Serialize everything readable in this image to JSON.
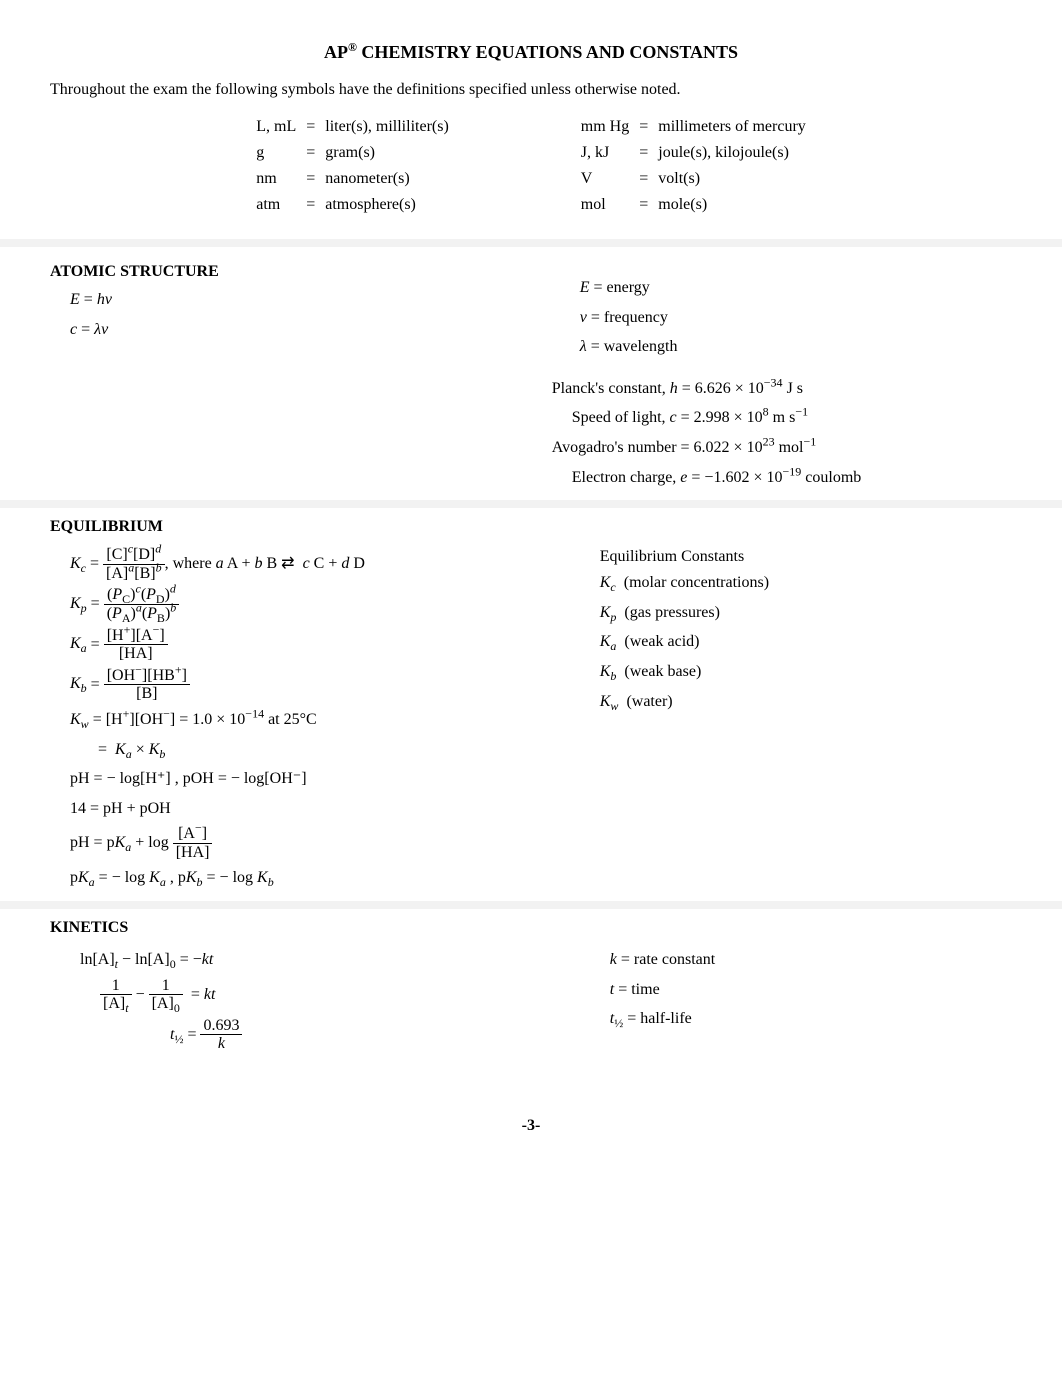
{
  "title_prefix": "AP",
  "title_reg": "®",
  "title_rest": " CHEMISTRY EQUATIONS AND CONSTANTS",
  "intro": "Throughout the exam the following symbols have the definitions specified unless otherwise noted.",
  "units_left": [
    {
      "sym": "L, mL",
      "eq": "=",
      "def": "liter(s), milliliter(s)"
    },
    {
      "sym": "g",
      "eq": "=",
      "def": "gram(s)"
    },
    {
      "sym": "nm",
      "eq": "=",
      "def": "nanometer(s)"
    },
    {
      "sym": "atm",
      "eq": "=",
      "def": "atmosphere(s)"
    }
  ],
  "units_right": [
    {
      "sym": "mm Hg",
      "eq": "=",
      "def": "millimeters of mercury"
    },
    {
      "sym": "J, kJ",
      "eq": "=",
      "def": "joule(s), kilojoule(s)"
    },
    {
      "sym": "V",
      "eq": "=",
      "def": "volt(s)"
    },
    {
      "sym": "mol",
      "eq": "=",
      "def": "mole(s)"
    }
  ],
  "atomic": {
    "head": "ATOMIC STRUCTURE",
    "eq1_lhs": "E",
    "eq1_rhs": "hν",
    "eq2_lhs": "c",
    "eq2_rhs": "λν",
    "defs": [
      {
        "sym": "E",
        "txt": " = energy"
      },
      {
        "sym": "ν",
        "txt": " = frequency"
      },
      {
        "sym": "λ",
        "txt": " = wavelength"
      }
    ],
    "consts": {
      "planck_label": "Planck's constant, ",
      "planck_sym": "h",
      "planck_val": " = 6.626 × 10",
      "planck_exp": "−34",
      "planck_unit": " J s",
      "light_label": "Speed of light, ",
      "light_sym": "c",
      "light_val": " = 2.998 × 10",
      "light_exp": "8",
      "light_unit": " m s",
      "light_unit_exp": "−1",
      "avo_label": "Avogadro's number = 6.022 × 10",
      "avo_exp": "23",
      "avo_unit": " mol",
      "avo_unit_exp": "−1",
      "elec_label": "Electron charge, ",
      "elec_sym": "e",
      "elec_val": " = −1.602 × 10",
      "elec_exp": "−19",
      "elec_unit": " coulomb"
    }
  },
  "equil": {
    "head": "EQUILIBRIUM",
    "where_txt": ", where ",
    "rxn_a": "a",
    "rxn_A": " A + ",
    "rxn_b": "b",
    "rxn_B": " B ",
    "rxn_arrow": "⇄",
    "rxn_c": " c",
    "rxn_C": " C + ",
    "rxn_d": "d",
    "rxn_D": " D",
    "kw_val": " = 1.0 × 10",
    "kw_exp": "−14",
    "kw_temp": " at 25°C",
    "ph_def": "pH = − log[H⁺] , pOH = − log[OH⁻]",
    "fourteen": "14 = pH + pOH",
    "pka_def_a": " = − log ",
    "pka_def_b": " = − log ",
    "consts_head": "Equilibrium Constants",
    "consts": [
      {
        "sym": "Kc",
        "txt": "(molar concentrations)"
      },
      {
        "sym": "Kp",
        "txt": "(gas pressures)"
      },
      {
        "sym": "Ka",
        "txt": "(weak acid)"
      },
      {
        "sym": "Kb",
        "txt": "(weak base)"
      },
      {
        "sym": "Kw",
        "txt": "(water)"
      }
    ]
  },
  "kinetics": {
    "head": "KINETICS",
    "half_num": "0.693",
    "defs_k": " = rate constant",
    "defs_t": " = time",
    "defs_th": " = half-life"
  },
  "page_num": "-3-"
}
